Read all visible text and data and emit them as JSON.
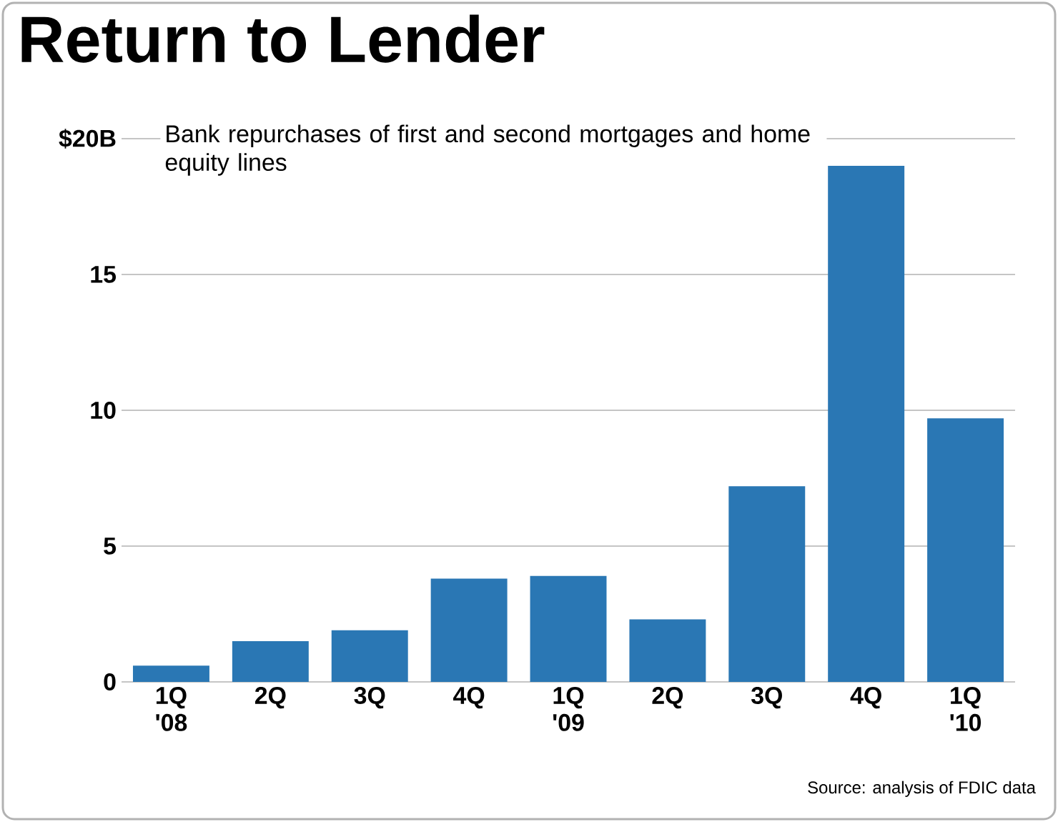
{
  "chart_data": {
    "type": "bar",
    "title": "Return to Lender",
    "subtitle": "Bank repurchases of first and second mortgages and home equity lines",
    "categories": [
      "1Q '08",
      "2Q",
      "3Q",
      "4Q",
      "1Q '09",
      "2Q",
      "3Q",
      "4Q",
      "1Q '10"
    ],
    "values": [
      0.6,
      1.5,
      1.9,
      3.8,
      3.9,
      2.3,
      7.2,
      19.0,
      9.7
    ],
    "color": "#2a77b4",
    "ylim": [
      0,
      20
    ],
    "yticks": [
      0,
      5,
      10,
      15,
      {
        "value": 20,
        "label": "$20B"
      }
    ],
    "grid": "y",
    "annotations": [
      "Source: analysis of FDIC data"
    ]
  }
}
